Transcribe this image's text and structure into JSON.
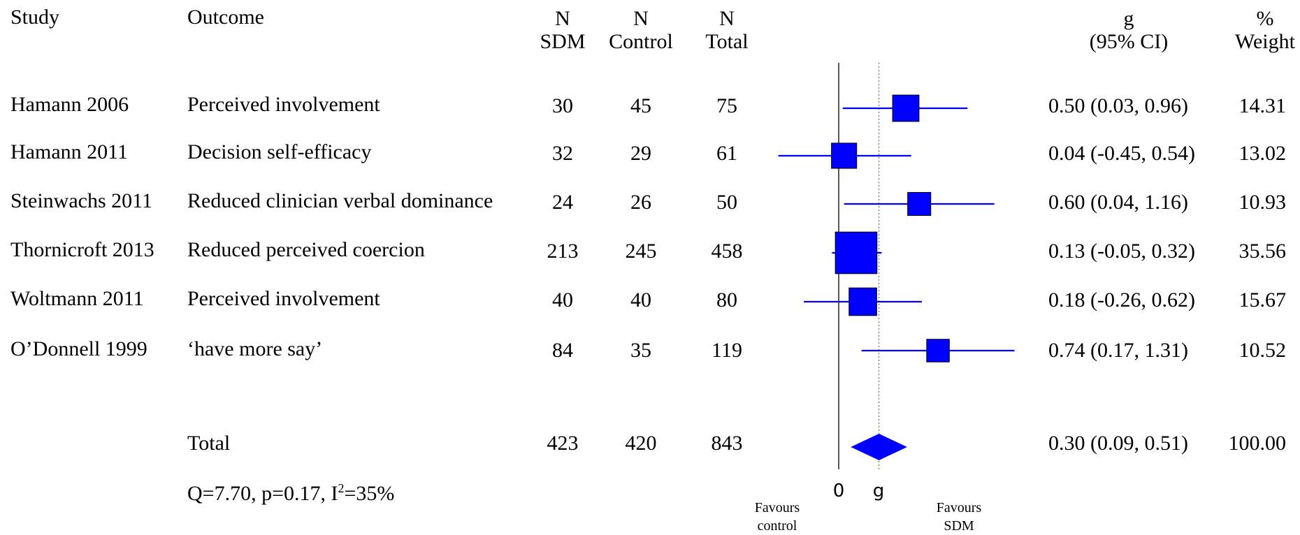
{
  "headers": {
    "study": "Study",
    "outcome": "Outcome",
    "n_sdm": [
      "N",
      "SDM"
    ],
    "n_control": [
      "N",
      "Control"
    ],
    "n_total": [
      "N",
      "Total"
    ],
    "g": [
      "g",
      "(95% CI)"
    ],
    "weight": [
      "%",
      "Weight"
    ]
  },
  "rows": [
    {
      "study": "Hamann 2006",
      "outcome": "Perceived involvement",
      "n_sdm": "30",
      "n_control": "45",
      "n_total": "75",
      "ci_text": "0.50 (0.03, 0.96)",
      "weight": "14.31"
    },
    {
      "study": "Hamann 2011",
      "outcome": "Decision self-efficacy",
      "n_sdm": "32",
      "n_control": "29",
      "n_total": "61",
      "ci_text": "0.04 (-0.45, 0.54)",
      "weight": "13.02"
    },
    {
      "study": "Steinwachs 2011",
      "outcome": "Reduced clinician verbal dominance",
      "n_sdm": "24",
      "n_control": "26",
      "n_total": "50",
      "ci_text": "0.60 (0.04, 1.16)",
      "weight": "10.93"
    },
    {
      "study": "Thornicroft 2013",
      "outcome": "Reduced perceived coercion",
      "n_sdm": "213",
      "n_control": "245",
      "n_total": "458",
      "ci_text": "0.13 (-0.05, 0.32)",
      "weight": "35.56"
    },
    {
      "study": "Woltmann 2011",
      "outcome": "Perceived involvement",
      "n_sdm": "40",
      "n_control": "40",
      "n_total": "80",
      "ci_text": "0.18 (-0.26, 0.62)",
      "weight": "15.67"
    },
    {
      "study": "O’Donnell 1999",
      "outcome": "‘have more say’",
      "n_sdm": "84",
      "n_control": "35",
      "n_total": "119",
      "ci_text": "0.74 (0.17, 1.31)",
      "weight": "10.52"
    }
  ],
  "total": {
    "label": "Total",
    "n_sdm": "423",
    "n_control": "420",
    "n_total": "843",
    "ci_text": "0.30 (0.09, 0.51)",
    "weight": "100.00"
  },
  "heterogeneity": {
    "prefix": "Q=7.70, p=0.17, I",
    "sup": "2",
    "suffix": "=35%"
  },
  "axis": {
    "zero_label": "0",
    "g_label": "g",
    "left_label": [
      "Favours",
      "control"
    ],
    "right_label": [
      "Favours",
      "SDM"
    ]
  },
  "chart_data": {
    "type": "forest",
    "series": [
      {
        "study": "Hamann 2006",
        "estimate": 0.5,
        "lower": 0.03,
        "upper": 0.96,
        "weight": 14.31
      },
      {
        "study": "Hamann 2011",
        "estimate": 0.04,
        "lower": -0.45,
        "upper": 0.54,
        "weight": 13.02
      },
      {
        "study": "Steinwachs 2011",
        "estimate": 0.6,
        "lower": 0.04,
        "upper": 1.16,
        "weight": 10.93
      },
      {
        "study": "Thornicroft 2013",
        "estimate": 0.13,
        "lower": -0.05,
        "upper": 0.32,
        "weight": 35.56
      },
      {
        "study": "Woltmann 2011",
        "estimate": 0.18,
        "lower": -0.26,
        "upper": 0.62,
        "weight": 15.67
      },
      {
        "study": "O’Donnell 1999",
        "estimate": 0.74,
        "lower": 0.17,
        "upper": 1.31,
        "weight": 10.52
      }
    ],
    "pooled": {
      "estimate": 0.3,
      "lower": 0.09,
      "upper": 0.51,
      "weight": 100.0
    },
    "reference_lines": [
      0,
      0.3
    ],
    "marker_color": "#0000ff"
  }
}
